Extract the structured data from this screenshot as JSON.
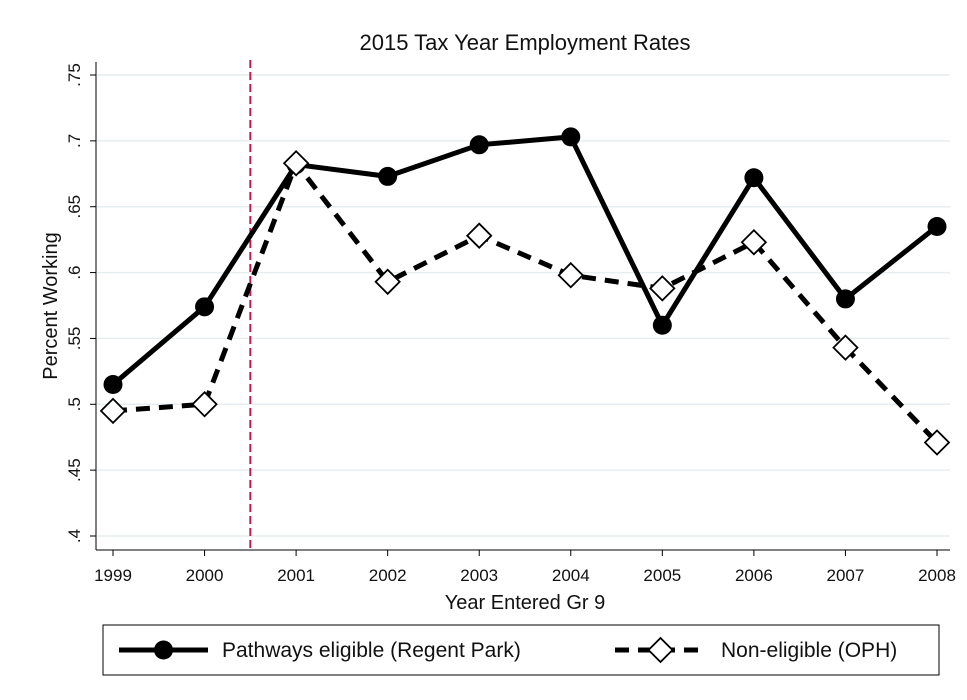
{
  "chart_data": {
    "type": "line",
    "title": "2015 Tax Year Employment Rates",
    "xlabel": "Year Entered Gr 9",
    "ylabel": "Percent Working",
    "x": [
      "1999",
      "2000",
      "2001",
      "2002",
      "2003",
      "2004",
      "2005",
      "2006",
      "2007",
      "2008"
    ],
    "x_range": [
      1999,
      2008
    ],
    "ylim": [
      0.4,
      0.75
    ],
    "yticks": [
      ".4",
      ".45",
      ".5",
      ".55",
      ".6",
      ".65",
      ".7",
      ".75"
    ],
    "ytick_values": [
      0.4,
      0.45,
      0.5,
      0.55,
      0.6,
      0.65,
      0.7,
      0.75
    ],
    "grid": true,
    "reference_line": {
      "x": 2000.5,
      "color": "#c8194b",
      "style": "dashed"
    },
    "legend_position": "bottom",
    "series": [
      {
        "name": "Pathways eligible (Regent Park)",
        "style": "solid",
        "marker": "filled-circle",
        "color": "#000000",
        "values": [
          0.515,
          0.574,
          0.682,
          0.673,
          0.697,
          0.703,
          0.56,
          0.672,
          0.58,
          0.635
        ]
      },
      {
        "name": "Non-eligible (OPH)",
        "style": "dashed",
        "marker": "hollow-diamond",
        "color": "#000000",
        "values": [
          0.495,
          0.5,
          0.683,
          0.593,
          0.628,
          0.598,
          0.588,
          0.623,
          0.543,
          0.471
        ]
      }
    ]
  }
}
